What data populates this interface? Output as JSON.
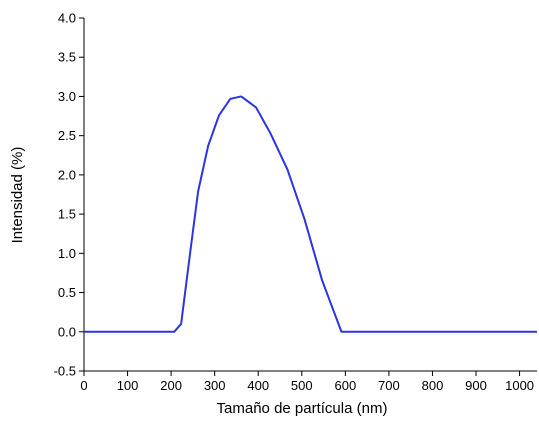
{
  "chart_data": {
    "type": "line",
    "x_label": "Tamaño de partícula (nm)",
    "y_label": "Intensidad (%)",
    "x": [
      0,
      207,
      223,
      244,
      262,
      285,
      310,
      336,
      361,
      395,
      428,
      467,
      506,
      547,
      591,
      1040
    ],
    "series": [
      {
        "color": "#2b35e0",
        "values": [
          0,
          0,
          0.1,
          1.02,
          1.79,
          2.37,
          2.76,
          2.97,
          3.0,
          2.86,
          2.53,
          2.07,
          1.44,
          0.65,
          0,
          0
        ]
      }
    ],
    "xlim": [
      0,
      1040
    ],
    "xticks": [
      0,
      100,
      200,
      300,
      400,
      500,
      600,
      700,
      800,
      900,
      1000
    ],
    "ylim": [
      -0.5,
      4.0
    ],
    "yticks": [
      -0.5,
      {
        "value": 0,
        "label": "0.0"
      },
      0.5,
      {
        "value": 1,
        "label": "1.0"
      },
      1.5,
      {
        "value": 2,
        "label": "2.0"
      },
      2.5,
      {
        "value": 3,
        "label": "3.0"
      },
      3.5,
      {
        "value": 4,
        "label": "4.0"
      }
    ],
    "grid": false
  }
}
